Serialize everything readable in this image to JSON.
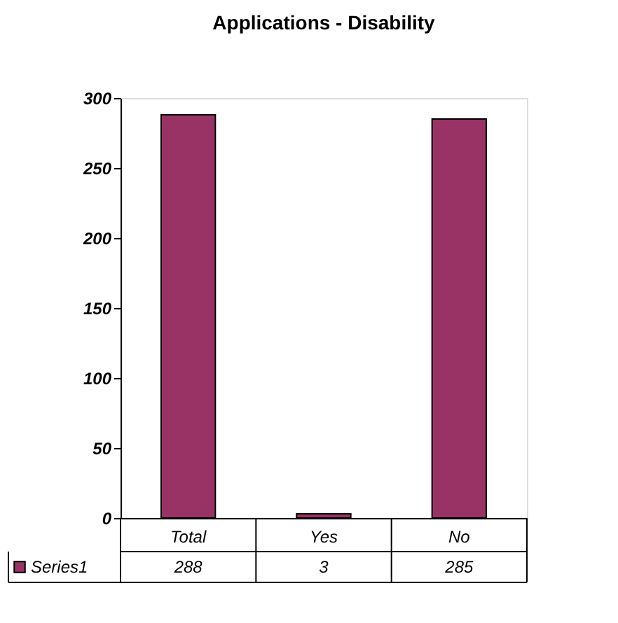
{
  "chart_data": {
    "type": "bar",
    "title": "Applications - Disability",
    "categories": [
      "Total",
      "Yes",
      "No"
    ],
    "series": [
      {
        "name": "Series1",
        "color": "#993366",
        "values": [
          288,
          3,
          285
        ]
      }
    ],
    "ylim": [
      0,
      300
    ],
    "yticks": [
      0,
      50,
      100,
      150,
      200,
      250,
      300
    ],
    "data_labels": true,
    "legend": "bottom",
    "grid": false
  }
}
